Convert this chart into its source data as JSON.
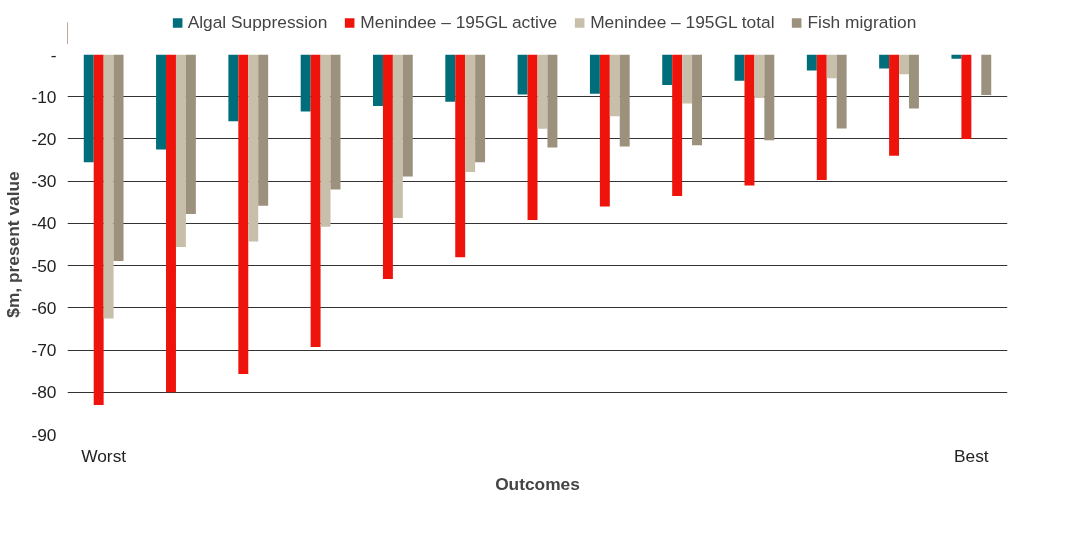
{
  "chart_data": {
    "type": "bar",
    "xlabel": "Outcomes",
    "ylabel": "$m, present value",
    "categories": [
      "Worst",
      null,
      null,
      null,
      null,
      null,
      null,
      null,
      null,
      null,
      null,
      null,
      "Best"
    ],
    "series": [
      {
        "name": "Algal Suppression",
        "color": "#006d7a",
        "values": [
          -25.5,
          -22.5,
          -15.8,
          -13.5,
          -12.2,
          -11.2,
          -9.5,
          -9.3,
          -7.2,
          -6.2,
          -3.8,
          -3.3,
          -1.0
        ]
      },
      {
        "name": "Menindee – 195GL active",
        "color": "#ee140b",
        "values": [
          -83,
          -80,
          -75.7,
          -69.3,
          -53.2,
          -48,
          -39.2,
          -36,
          -33.5,
          -31,
          -29.7,
          -24,
          -20
        ]
      },
      {
        "name": "Menindee – 195GL total",
        "color": "#c8bfaa",
        "values": [
          -62.5,
          -45.6,
          -44.3,
          -40.8,
          -38.7,
          -27.8,
          -17.6,
          -14.6,
          -11.6,
          -10.3,
          -5.6,
          -4.7,
          null
        ]
      },
      {
        "name": "Fish migration",
        "color": "#9c917d",
        "values": [
          -48.9,
          -37.8,
          -35.8,
          -32,
          -28.9,
          -25.5,
          -22,
          -21.8,
          -21.5,
          -20.3,
          -17.5,
          -12.8,
          -9.6
        ]
      }
    ],
    "ylim": [
      -90,
      0
    ],
    "yticks": [
      {
        "value": 0,
        "label": "-"
      },
      -10,
      -20,
      -30,
      -40,
      -50,
      -60,
      -70,
      -80,
      -90
    ],
    "grid": "y",
    "legend": "top"
  }
}
